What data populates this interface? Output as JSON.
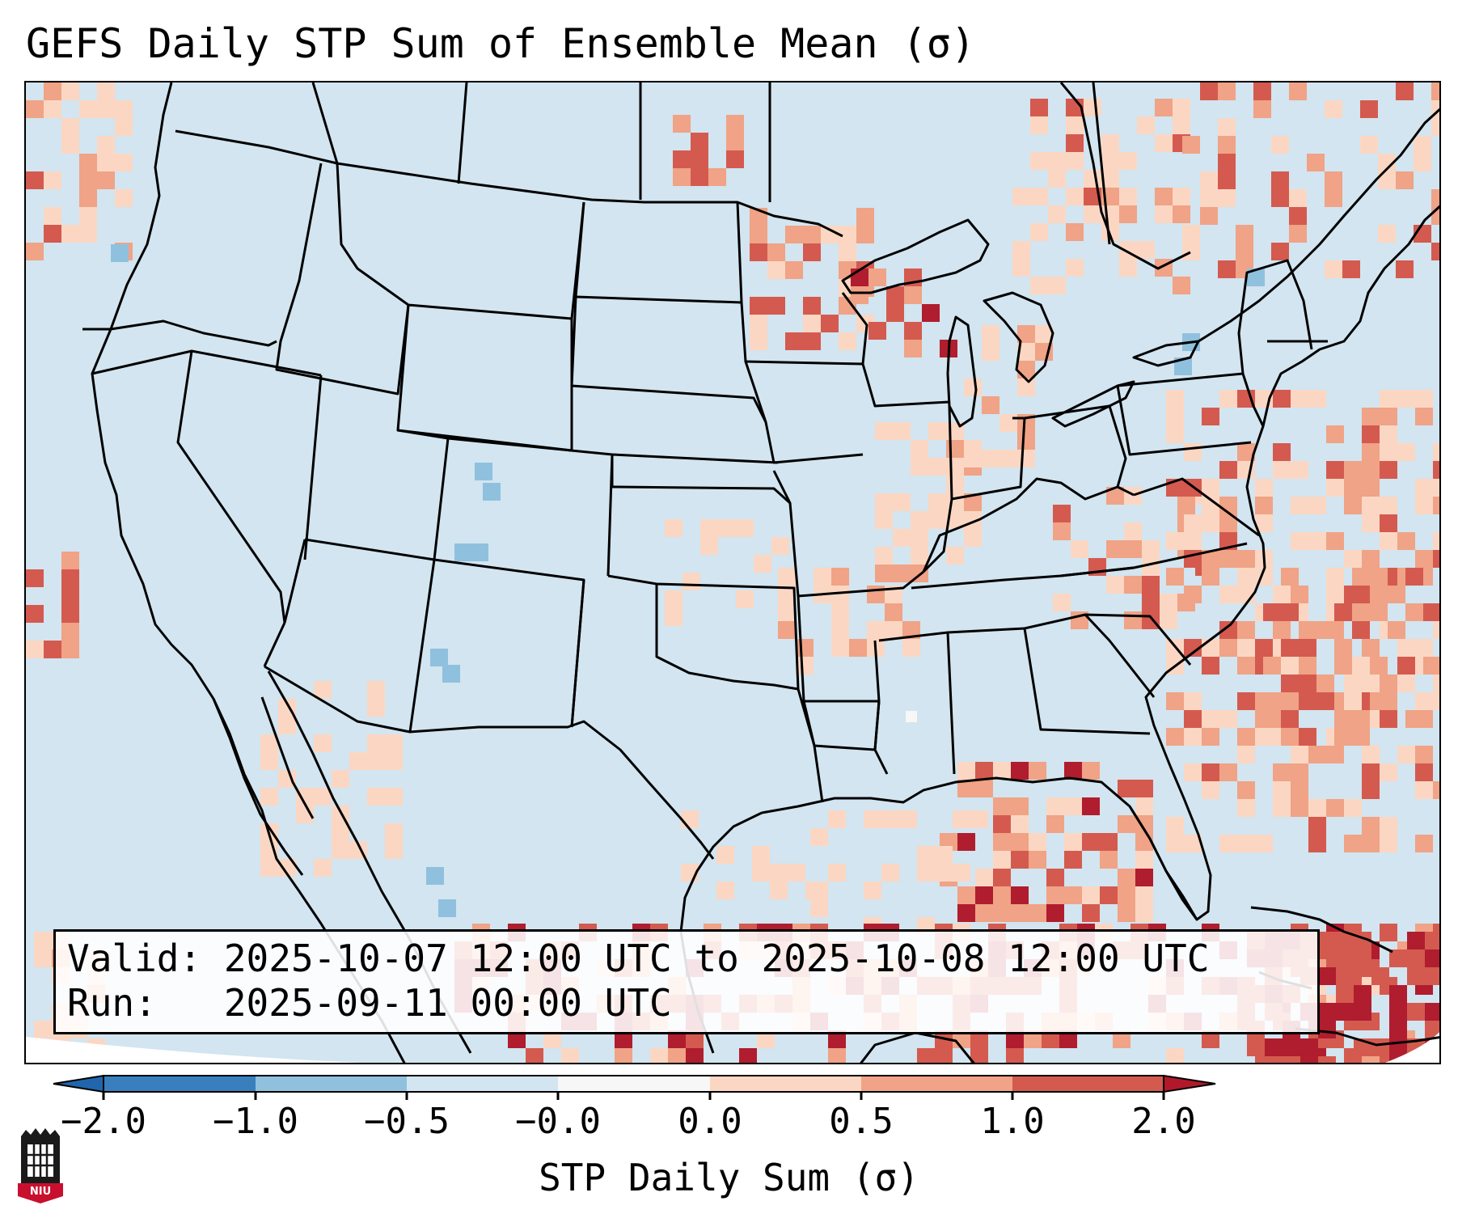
{
  "title": "GEFS Daily STP Sum of Ensemble Mean (σ)",
  "info": {
    "valid_line": "Valid: 2025-10-07 12:00 UTC to 2025-10-08 12:00 UTC",
    "run_line": "Run:   2025-09-11 00:00 UTC"
  },
  "colorbar": {
    "label": "STP Daily Sum (σ)",
    "ticks": [
      "−2.0",
      "−1.0",
      "−0.5",
      "−0.0",
      "0.0",
      "0.5",
      "1.0",
      "2.0"
    ],
    "colors": [
      "#3a7fbd",
      "#8fc1de",
      "#d2e5f0",
      "#f7f7f7",
      "#fbd7c3",
      "#f0a386",
      "#d45a4f",
      "#b01d2e"
    ],
    "under_color": "#2166ac",
    "over_color": "#b2182b"
  },
  "logo": {
    "text": "NIU",
    "icon": "niu-logo-icon"
  }
}
